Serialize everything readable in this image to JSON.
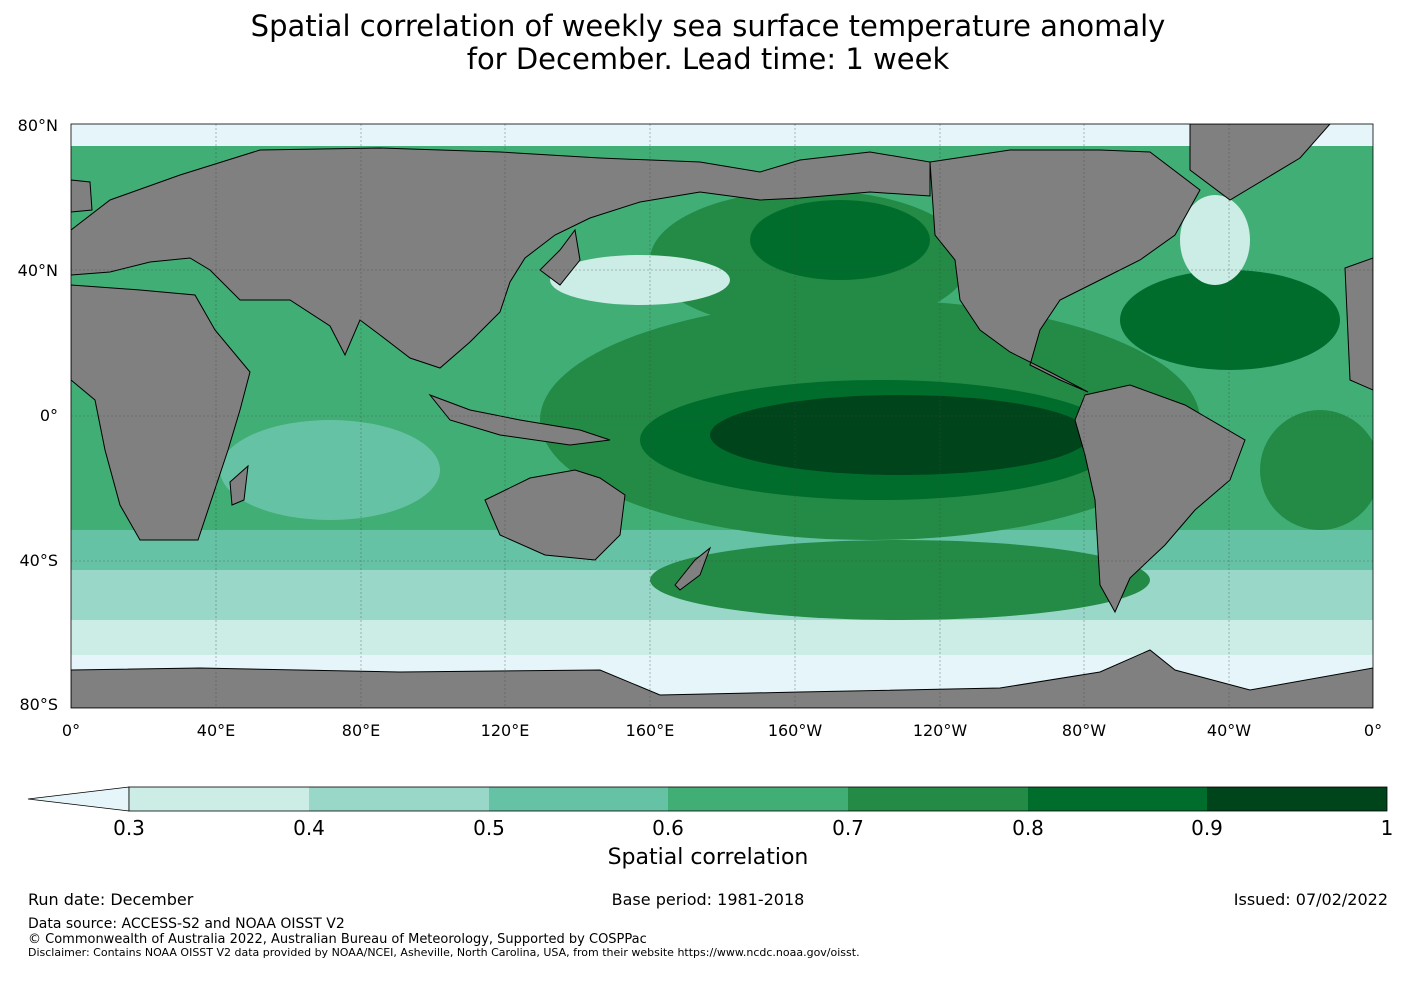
{
  "title": {
    "line1": "Spatial correlation of weekly sea surface temperature anomaly",
    "line2": "for December. Lead time: 1 week"
  },
  "map": {
    "lat_labels": [
      "80°N",
      "40°N",
      "0°",
      "40°S",
      "80°S"
    ],
    "lon_labels": [
      "0°",
      "40°E",
      "80°E",
      "120°E",
      "160°E",
      "160°W",
      "120°W",
      "80°W",
      "40°W",
      "0°"
    ],
    "colors": {
      "land": "#808080",
      "ice": "#e5f5f9",
      "levels": [
        "#ccece6",
        "#99d8c9",
        "#66c2a4",
        "#41ae76",
        "#238b45",
        "#006d2c",
        "#00441b"
      ]
    }
  },
  "colorbar": {
    "ticks": [
      "0.3",
      "0.4",
      "0.5",
      "0.6",
      "0.7",
      "0.8",
      "0.9",
      "1"
    ],
    "title": "Spatial correlation",
    "extend_color": "#e5f5f9"
  },
  "footer": {
    "run_date": "Run date: December",
    "base_period": "Base period: 1981-2018",
    "issued": "Issued: 07/02/2022",
    "data_source": "Data source: ACCESS-S2 and NOAA OISST V2",
    "copyright": "© Commonwealth of Australia 2022, Australian Bureau of Meteorology, Supported by COSPPac",
    "disclaimer": "Disclaimer: Contains NOAA OISST V2 data provided by NOAA/NCEI, Asheville, North Carolina, USA, from their website https://www.ncdc.noaa.gov/oisst."
  }
}
